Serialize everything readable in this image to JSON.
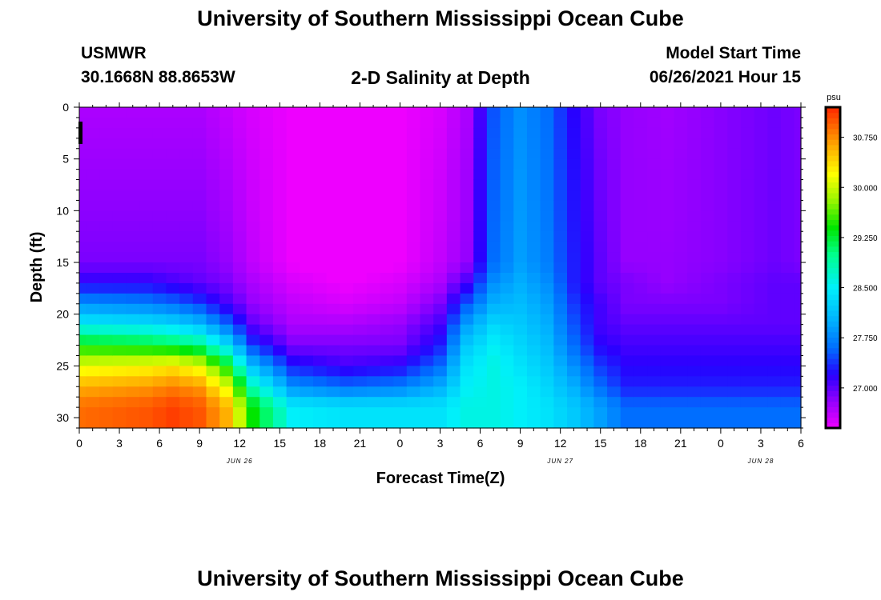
{
  "header": {
    "title": "University of Southern Mississippi Ocean Cube",
    "station_name": "USMWR",
    "station_coords": "30.1668N  88.8653W",
    "plot_title": "2-D Salinity at Depth",
    "model_start_label": "Model Start Time",
    "model_start_value": "06/26/2021 Hour 15"
  },
  "footer": {
    "title": "University of Southern Mississippi Ocean Cube"
  },
  "chart_data": {
    "type": "heatmap",
    "title": "2-D Salinity at Depth",
    "xlabel": "Forecast Time(Z)",
    "ylabel": "Depth (ft)",
    "x_tick_labels": [
      "0",
      "3",
      "6",
      "9",
      "12",
      "15",
      "18",
      "21",
      "0",
      "3",
      "6",
      "9",
      "12",
      "15",
      "18",
      "21",
      "0",
      "3",
      "6"
    ],
    "date_labels": [
      {
        "text": "JUN 26",
        "hours_from_start": 12
      },
      {
        "text": "JUN 27",
        "hours_from_start": 36
      },
      {
        "text": "JUN 28",
        "hours_from_start": 51
      }
    ],
    "x_range_hours": [
      0,
      54
    ],
    "ylim": [
      0,
      31
    ],
    "y_ticks": [
      0,
      5,
      10,
      15,
      20,
      25,
      30
    ],
    "time_step_hours": 1,
    "depth_step_ft": 1,
    "values_description": "salinity (psu) per hour (0-54) and per ft of depth (0-30)",
    "colorbar": {
      "unit": "psu",
      "min": 26.4,
      "max": 31.2,
      "tick_values": [
        27.0,
        27.75,
        28.5,
        29.25,
        30.0,
        30.75
      ],
      "tick_labels": [
        "27.000",
        "27.750",
        "28.500",
        "29.250",
        "30.000",
        "30.750"
      ]
    },
    "salinity_profiles": {
      "key_depths_ft": [
        0,
        15,
        17,
        19,
        21,
        23,
        25,
        27,
        29,
        31
      ],
      "key_times_hours": [
        0,
        5,
        7,
        9,
        11,
        13,
        16,
        20,
        24,
        27,
        29,
        31,
        33,
        35,
        37,
        39,
        41,
        44,
        48,
        52,
        54
      ],
      "values_by_time": [
        [
          26.7,
          26.9,
          27.2,
          27.8,
          28.5,
          29.4,
          30.1,
          30.6,
          30.9,
          30.9
        ],
        [
          26.7,
          26.9,
          27.2,
          27.7,
          28.4,
          29.3,
          30.2,
          30.7,
          31.0,
          31.0
        ],
        [
          26.7,
          26.9,
          27.1,
          27.6,
          28.3,
          29.2,
          30.3,
          30.8,
          31.1,
          31.1
        ],
        [
          26.7,
          26.9,
          27.0,
          27.4,
          28.1,
          29.0,
          30.1,
          30.7,
          31.0,
          31.0
        ],
        [
          26.6,
          26.8,
          26.9,
          27.1,
          27.6,
          28.4,
          29.4,
          30.1,
          30.6,
          30.6
        ],
        [
          26.5,
          26.6,
          26.7,
          26.8,
          27.0,
          27.4,
          28.1,
          28.8,
          29.4,
          29.4
        ],
        [
          26.4,
          26.4,
          26.5,
          26.6,
          26.7,
          26.9,
          27.3,
          27.8,
          28.5,
          28.5
        ],
        [
          26.3,
          26.3,
          26.4,
          26.5,
          26.7,
          26.9,
          27.1,
          27.6,
          28.4,
          28.4
        ],
        [
          26.4,
          26.4,
          26.5,
          26.6,
          26.8,
          26.9,
          27.2,
          27.7,
          28.4,
          28.4
        ],
        [
          26.5,
          26.6,
          26.7,
          26.9,
          27.1,
          27.3,
          27.6,
          28.0,
          28.4,
          28.4
        ],
        [
          26.7,
          26.8,
          27.1,
          27.5,
          27.9,
          28.2,
          28.4,
          28.5,
          28.6,
          28.6
        ],
        [
          27.5,
          27.6,
          27.8,
          28.0,
          28.3,
          28.5,
          28.6,
          28.6,
          28.6,
          28.6
        ],
        [
          27.8,
          27.9,
          28.0,
          28.1,
          28.2,
          28.3,
          28.4,
          28.5,
          28.5,
          28.5
        ],
        [
          27.6,
          27.7,
          27.8,
          27.9,
          28.0,
          28.1,
          28.2,
          28.3,
          28.4,
          28.4
        ],
        [
          27.2,
          27.3,
          27.3,
          27.4,
          27.5,
          27.6,
          27.8,
          28.0,
          28.2,
          28.2
        ],
        [
          26.9,
          27.0,
          27.0,
          27.1,
          27.1,
          27.2,
          27.4,
          27.6,
          27.9,
          27.9
        ],
        [
          26.8,
          26.8,
          26.9,
          26.9,
          27.0,
          27.1,
          27.2,
          27.3,
          27.6,
          27.6
        ],
        [
          26.75,
          26.8,
          26.8,
          26.9,
          27.0,
          27.1,
          27.2,
          27.3,
          27.6,
          27.6
        ],
        [
          26.85,
          26.85,
          26.9,
          26.9,
          27.0,
          27.1,
          27.2,
          27.3,
          27.6,
          27.6
        ],
        [
          26.95,
          26.95,
          27.0,
          27.0,
          27.0,
          27.1,
          27.2,
          27.3,
          27.6,
          27.6
        ],
        [
          26.9,
          26.9,
          27.0,
          27.0,
          27.0,
          27.1,
          27.2,
          27.3,
          27.6,
          27.6
        ]
      ]
    }
  }
}
